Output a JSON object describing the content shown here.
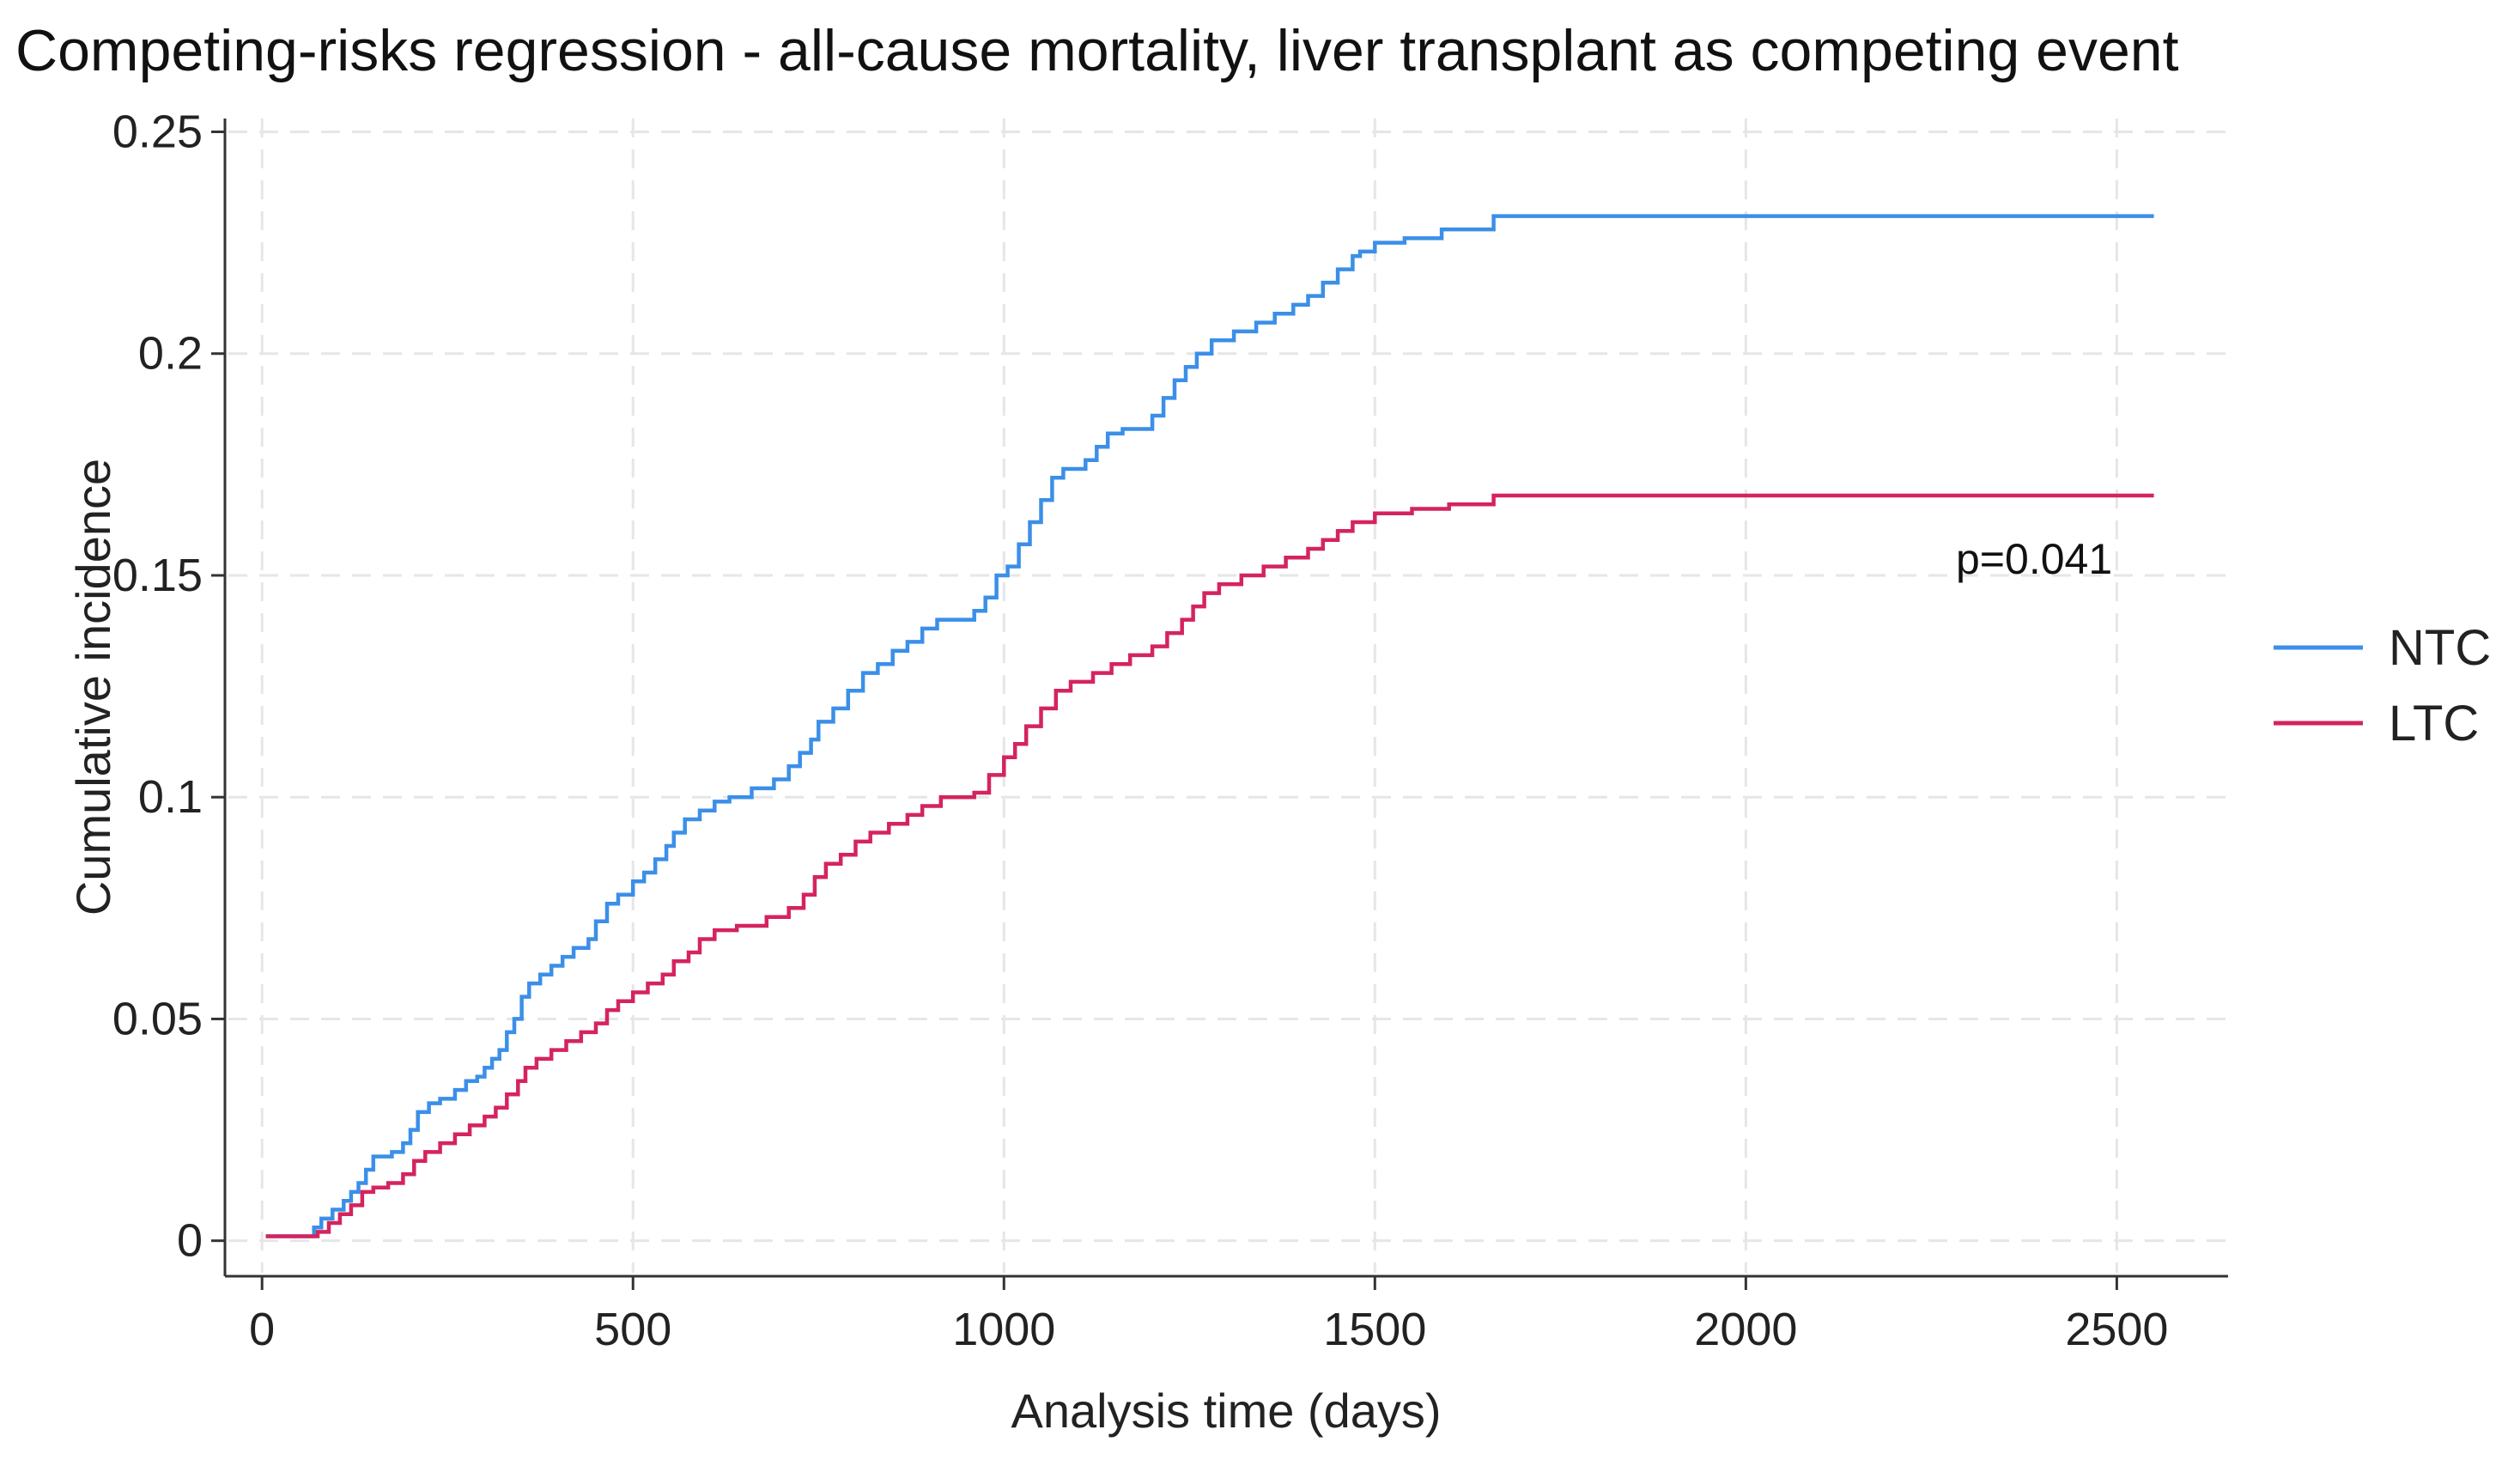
{
  "chart_data": {
    "type": "line",
    "step": true,
    "title": "Competing-risks regression - all-cause mortality, liver transplant as competing event",
    "xlabel": "Analysis time (days)",
    "ylabel": "Cumulative incidence",
    "xlim": [
      -50,
      2650
    ],
    "ylim": [
      -0.008,
      0.253
    ],
    "x_ticks": [
      {
        "value": 0,
        "label": "0"
      },
      {
        "value": 500,
        "label": "500"
      },
      {
        "value": 1000,
        "label": "1000"
      },
      {
        "value": 1500,
        "label": "1500"
      },
      {
        "value": 2000,
        "label": "2000"
      },
      {
        "value": 2500,
        "label": "2500"
      }
    ],
    "y_ticks": [
      {
        "value": 0,
        "label": "0"
      },
      {
        "value": 0.05,
        "label": "0.05"
      },
      {
        "value": 0.1,
        "label": "0.1"
      },
      {
        "value": 0.15,
        "label": "0.15"
      },
      {
        "value": 0.2,
        "label": "0.2"
      },
      {
        "value": 0.25,
        "label": "0.25"
      }
    ],
    "grid": true,
    "legend_position": "right",
    "annotation": "p=0.041",
    "series": [
      {
        "name": "NTC",
        "color": "#3b8fe8",
        "points": [
          [
            5,
            0.001
          ],
          [
            65,
            0.001
          ],
          [
            70,
            0.003
          ],
          [
            80,
            0.005
          ],
          [
            95,
            0.007
          ],
          [
            110,
            0.009
          ],
          [
            120,
            0.011
          ],
          [
            130,
            0.013
          ],
          [
            140,
            0.016
          ],
          [
            150,
            0.019
          ],
          [
            175,
            0.02
          ],
          [
            190,
            0.022
          ],
          [
            200,
            0.025
          ],
          [
            210,
            0.029
          ],
          [
            225,
            0.031
          ],
          [
            240,
            0.032
          ],
          [
            260,
            0.034
          ],
          [
            275,
            0.036
          ],
          [
            290,
            0.037
          ],
          [
            300,
            0.039
          ],
          [
            310,
            0.041
          ],
          [
            320,
            0.043
          ],
          [
            330,
            0.047
          ],
          [
            340,
            0.05
          ],
          [
            350,
            0.055
          ],
          [
            360,
            0.058
          ],
          [
            375,
            0.06
          ],
          [
            390,
            0.062
          ],
          [
            405,
            0.064
          ],
          [
            420,
            0.066
          ],
          [
            440,
            0.068
          ],
          [
            450,
            0.072
          ],
          [
            465,
            0.076
          ],
          [
            480,
            0.078
          ],
          [
            500,
            0.081
          ],
          [
            515,
            0.083
          ],
          [
            530,
            0.086
          ],
          [
            545,
            0.089
          ],
          [
            555,
            0.092
          ],
          [
            570,
            0.095
          ],
          [
            590,
            0.097
          ],
          [
            610,
            0.099
          ],
          [
            630,
            0.1
          ],
          [
            660,
            0.102
          ],
          [
            690,
            0.104
          ],
          [
            710,
            0.107
          ],
          [
            725,
            0.11
          ],
          [
            740,
            0.113
          ],
          [
            750,
            0.117
          ],
          [
            770,
            0.12
          ],
          [
            790,
            0.124
          ],
          [
            810,
            0.128
          ],
          [
            830,
            0.13
          ],
          [
            850,
            0.133
          ],
          [
            870,
            0.135
          ],
          [
            890,
            0.138
          ],
          [
            910,
            0.14
          ],
          [
            960,
            0.142
          ],
          [
            975,
            0.145
          ],
          [
            990,
            0.15
          ],
          [
            1005,
            0.152
          ],
          [
            1020,
            0.157
          ],
          [
            1035,
            0.162
          ],
          [
            1050,
            0.167
          ],
          [
            1065,
            0.172
          ],
          [
            1080,
            0.174
          ],
          [
            1110,
            0.176
          ],
          [
            1125,
            0.179
          ],
          [
            1140,
            0.182
          ],
          [
            1160,
            0.183
          ],
          [
            1200,
            0.186
          ],
          [
            1215,
            0.19
          ],
          [
            1230,
            0.194
          ],
          [
            1245,
            0.197
          ],
          [
            1260,
            0.2
          ],
          [
            1280,
            0.203
          ],
          [
            1310,
            0.205
          ],
          [
            1340,
            0.207
          ],
          [
            1365,
            0.209
          ],
          [
            1390,
            0.211
          ],
          [
            1410,
            0.213
          ],
          [
            1430,
            0.216
          ],
          [
            1450,
            0.219
          ],
          [
            1470,
            0.222
          ],
          [
            1480,
            0.223
          ],
          [
            1500,
            0.225
          ],
          [
            1540,
            0.226
          ],
          [
            1590,
            0.228
          ],
          [
            1660,
            0.231
          ],
          [
            2550,
            0.231
          ]
        ]
      },
      {
        "name": "LTC",
        "color": "#d4245e",
        "points": [
          [
            5,
            0.001
          ],
          [
            65,
            0.001
          ],
          [
            75,
            0.002
          ],
          [
            90,
            0.004
          ],
          [
            105,
            0.006
          ],
          [
            120,
            0.008
          ],
          [
            135,
            0.011
          ],
          [
            150,
            0.012
          ],
          [
            170,
            0.013
          ],
          [
            190,
            0.015
          ],
          [
            205,
            0.018
          ],
          [
            220,
            0.02
          ],
          [
            240,
            0.022
          ],
          [
            260,
            0.024
          ],
          [
            280,
            0.026
          ],
          [
            300,
            0.028
          ],
          [
            315,
            0.03
          ],
          [
            330,
            0.033
          ],
          [
            345,
            0.036
          ],
          [
            355,
            0.039
          ],
          [
            370,
            0.041
          ],
          [
            390,
            0.043
          ],
          [
            410,
            0.045
          ],
          [
            430,
            0.047
          ],
          [
            450,
            0.049
          ],
          [
            465,
            0.052
          ],
          [
            480,
            0.054
          ],
          [
            500,
            0.056
          ],
          [
            520,
            0.058
          ],
          [
            540,
            0.06
          ],
          [
            555,
            0.063
          ],
          [
            575,
            0.065
          ],
          [
            590,
            0.068
          ],
          [
            610,
            0.07
          ],
          [
            640,
            0.071
          ],
          [
            680,
            0.073
          ],
          [
            710,
            0.075
          ],
          [
            730,
            0.078
          ],
          [
            745,
            0.082
          ],
          [
            760,
            0.085
          ],
          [
            780,
            0.087
          ],
          [
            800,
            0.09
          ],
          [
            820,
            0.092
          ],
          [
            845,
            0.094
          ],
          [
            870,
            0.096
          ],
          [
            890,
            0.098
          ],
          [
            915,
            0.1
          ],
          [
            960,
            0.101
          ],
          [
            980,
            0.105
          ],
          [
            1000,
            0.109
          ],
          [
            1015,
            0.112
          ],
          [
            1030,
            0.116
          ],
          [
            1050,
            0.12
          ],
          [
            1070,
            0.124
          ],
          [
            1090,
            0.126
          ],
          [
            1120,
            0.128
          ],
          [
            1145,
            0.13
          ],
          [
            1170,
            0.132
          ],
          [
            1200,
            0.134
          ],
          [
            1220,
            0.137
          ],
          [
            1240,
            0.14
          ],
          [
            1255,
            0.143
          ],
          [
            1270,
            0.146
          ],
          [
            1290,
            0.148
          ],
          [
            1320,
            0.15
          ],
          [
            1350,
            0.152
          ],
          [
            1380,
            0.154
          ],
          [
            1410,
            0.156
          ],
          [
            1430,
            0.158
          ],
          [
            1450,
            0.16
          ],
          [
            1470,
            0.162
          ],
          [
            1500,
            0.164
          ],
          [
            1550,
            0.165
          ],
          [
            1600,
            0.166
          ],
          [
            1660,
            0.168
          ],
          [
            2550,
            0.168
          ]
        ]
      }
    ]
  }
}
